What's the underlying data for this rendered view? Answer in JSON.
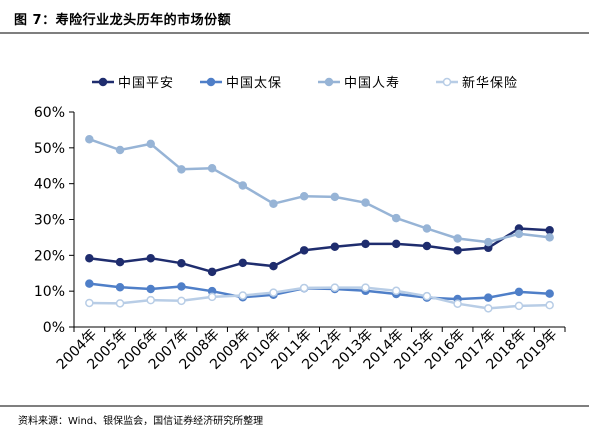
{
  "header": {
    "title": "图 7：寿险行业龙头历年的市场份额"
  },
  "footer": {
    "source": "资料来源：Wind、银保监会，国信证券经济研究所整理"
  },
  "chart_data": {
    "type": "line",
    "title": "",
    "xlabel": "",
    "ylabel": "",
    "x": [
      "2004年",
      "2005年",
      "2006年",
      "2007年",
      "2008年",
      "2009年",
      "2010年",
      "2011年",
      "2012年",
      "2013年",
      "2014年",
      "2015年",
      "2016年",
      "2017年",
      "2018年",
      "2019年"
    ],
    "yticks": [
      "0%",
      "10%",
      "20%",
      "30%",
      "40%",
      "50%",
      "60%"
    ],
    "ylim": [
      0,
      60
    ],
    "grid": false,
    "legend_position": "top",
    "series": [
      {
        "name": "中国平安",
        "color": "#1f2d6e",
        "marker_fill": "#1f2d6e",
        "values": [
          19.2,
          18.1,
          19.2,
          17.8,
          15.4,
          17.9,
          17.0,
          21.4,
          22.4,
          23.2,
          23.2,
          22.6,
          21.4,
          22.1,
          27.5,
          27.0
        ]
      },
      {
        "name": "中国太保",
        "color": "#4f7fc8",
        "marker_fill": "#4f7fc8",
        "values": [
          12.1,
          11.1,
          10.6,
          11.3,
          10.0,
          8.3,
          9.0,
          10.8,
          10.6,
          10.1,
          9.2,
          8.2,
          7.8,
          8.2,
          9.8,
          9.3
        ]
      },
      {
        "name": "中国人寿",
        "color": "#97b4d6",
        "marker_fill": "#97b4d6",
        "values": [
          52.4,
          49.4,
          51.1,
          44.0,
          44.3,
          39.5,
          34.4,
          36.5,
          36.3,
          34.7,
          30.4,
          27.5,
          24.7,
          23.7,
          26.0,
          25.0
        ]
      },
      {
        "name": "新华保险",
        "color": "#b8cde6",
        "marker_fill": "#ffffff",
        "values": [
          6.7,
          6.6,
          7.5,
          7.3,
          8.4,
          8.8,
          9.6,
          10.9,
          11.0,
          11.0,
          10.1,
          8.6,
          6.5,
          5.2,
          5.9,
          6.1
        ]
      }
    ]
  }
}
